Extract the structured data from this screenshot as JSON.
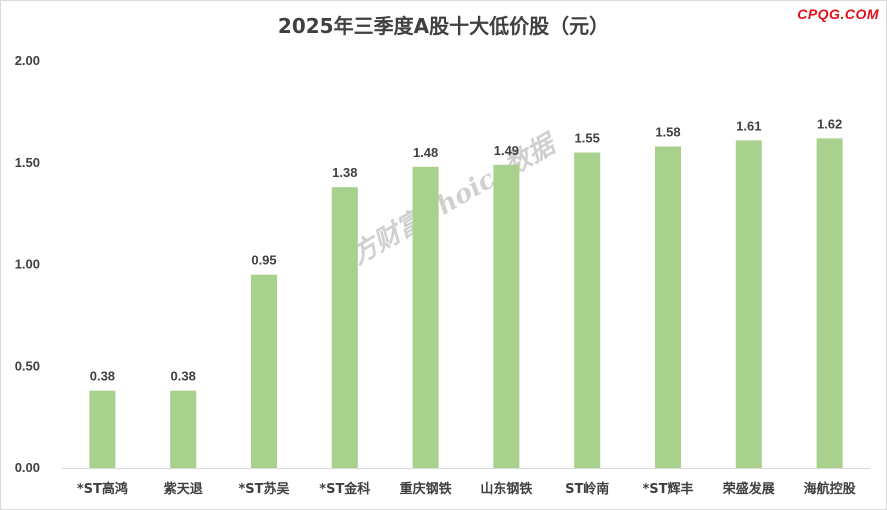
{
  "header": {
    "title": "2025年三季度A股十大低价股（元）",
    "brand": "CPQG.COM",
    "watermark": "东方财富Choice数据"
  },
  "chart_data": {
    "type": "bar",
    "title": "2025年三季度A股十大低价股（元）",
    "categories": [
      "*ST高鸿",
      "紫天退",
      "*ST苏吴",
      "*ST金科",
      "重庆钢铁",
      "山东钢铁",
      "ST岭南",
      "*ST辉丰",
      "荣盛发展",
      "海航控股"
    ],
    "values": [
      0.38,
      0.38,
      0.95,
      1.38,
      1.48,
      1.49,
      1.55,
      1.58,
      1.61,
      1.62
    ],
    "value_labels": [
      "0.38",
      "0.38",
      "0.95",
      "1.38",
      "1.48",
      "1.49",
      "1.55",
      "1.58",
      "1.61",
      "1.62"
    ],
    "yticks": [
      "0.00",
      "0.50",
      "1.00",
      "1.50",
      "2.00"
    ],
    "ylim": [
      0,
      2
    ],
    "grid": false,
    "legend": "none",
    "bar_color": "#a9d18e",
    "xlabel": "",
    "ylabel": ""
  }
}
